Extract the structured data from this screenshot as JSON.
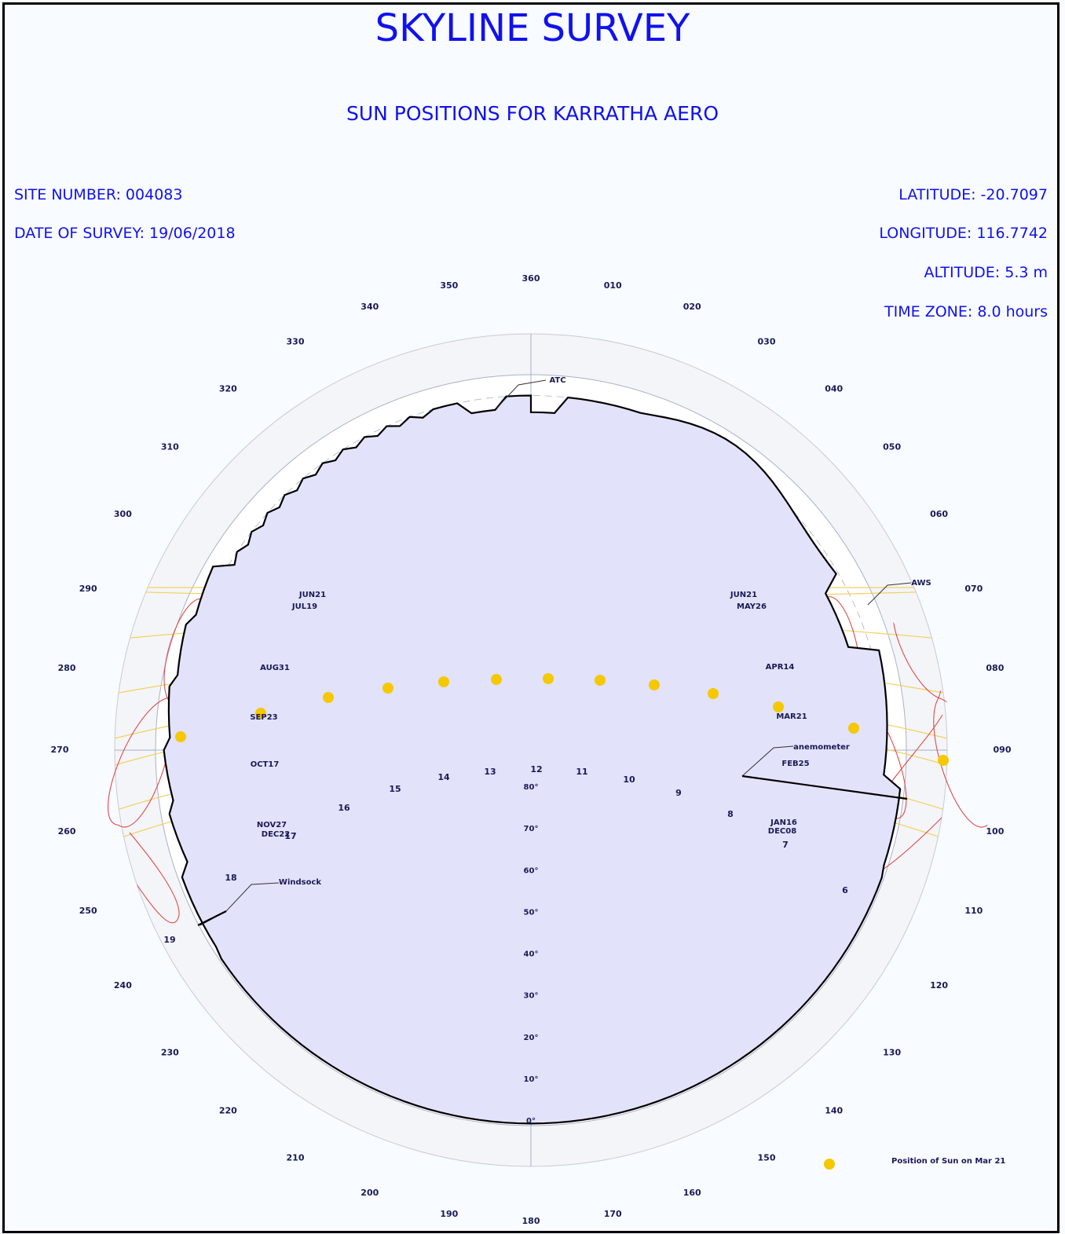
{
  "title": "SKYLINE SURVEY",
  "subtitle": "SUN POSITIONS FOR KARRATHA AERO",
  "site_info": {
    "site_number": "SITE NUMBER: 004083",
    "date_of_survey": "DATE OF SURVEY: 19/06/2018",
    "latitude": "LATITUDE: -20.7097",
    "longitude": "LONGITUDE: 116.7742",
    "altitude": "ALTITUDE: 5.3 m",
    "time_zone": "TIME ZONE: 8.0 hours"
  },
  "compass_labels": [
    "360",
    "010",
    "020",
    "030",
    "040",
    "050",
    "060",
    "070",
    "080",
    "090",
    "100",
    "110",
    "120",
    "130",
    "140",
    "150",
    "160",
    "170",
    "180",
    "190",
    "200",
    "210",
    "220",
    "230",
    "240",
    "250",
    "260",
    "270",
    "280",
    "290",
    "300",
    "310",
    "320",
    "330",
    "340",
    "350"
  ],
  "altitude_labels": [
    "0°",
    "10°",
    "20°",
    "30°",
    "40°",
    "50°",
    "60°",
    "70°",
    "80°"
  ],
  "hour_labels": [
    "6",
    "7",
    "8",
    "9",
    "10",
    "11",
    "12",
    "13",
    "14",
    "15",
    "16",
    "17",
    "18",
    "19"
  ],
  "date_labels": {
    "jun21_left": "JUN21",
    "jul19": "JUL19",
    "aug31": "AUG31",
    "sep23": "SEP23",
    "oct17": "OCT17",
    "nov27": "NOV27",
    "dec22": "DEC22",
    "jun21_right": "JUN21",
    "may26": "MAY26",
    "apr14": "APR14",
    "mar21": "MAR21",
    "feb25": "FEB25",
    "jan16": "JAN16",
    "dec08": "DEC08"
  },
  "obstacles": [
    "ATC",
    "AWS",
    "anemometer",
    "Windsock"
  ],
  "legend": {
    "label": "Position of Sun on Mar 21"
  },
  "colors": {
    "title": "#1111ee",
    "sky_fill": "#e2e2fb",
    "sun_dot": "#f5c800",
    "analemma": "#e04a4a",
    "declination_line": "#f2d060",
    "grid": "#aab0c8",
    "label": "#1a1a55"
  }
}
